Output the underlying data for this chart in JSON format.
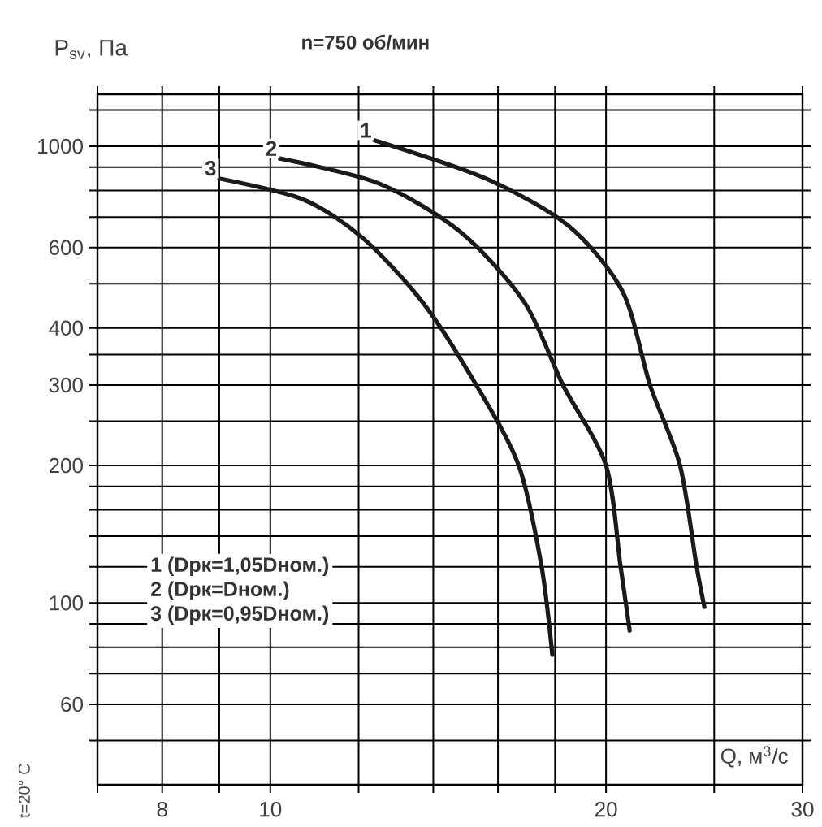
{
  "chart_data": {
    "type": "line",
    "title": "n=750 об/мин",
    "xlabel": "Q, м$^{3}$/с",
    "ylabel": "P$_{sv}$, Па",
    "log": "xy",
    "grid": true,
    "legend": false,
    "marker": "none",
    "line_style": "solid",
    "xlim": [
      7,
      30
    ],
    "ylim": [
      40,
      1300
    ],
    "xticks": [
      {
        "value": 7,
        "label": null
      },
      8,
      {
        "value": 9,
        "label": null
      },
      10,
      {
        "value": 12,
        "label": null
      },
      {
        "value": 14,
        "label": null
      },
      {
        "value": 16,
        "label": null
      },
      {
        "value": 18,
        "label": null
      },
      20,
      {
        "value": 25,
        "label": null
      },
      30
    ],
    "yticks": [
      {
        "value": 50,
        "label": null
      },
      60,
      {
        "value": 70,
        "label": null
      },
      {
        "value": 80,
        "label": null
      },
      {
        "value": 90,
        "label": null
      },
      100,
      {
        "value": 120,
        "label": null
      },
      {
        "value": 140,
        "label": null
      },
      {
        "value": 160,
        "label": null
      },
      {
        "value": 180,
        "label": null
      },
      200,
      {
        "value": 250,
        "label": null
      },
      300,
      {
        "value": 350,
        "label": null
      },
      400,
      {
        "value": 500,
        "label": null
      },
      600,
      {
        "value": 700,
        "label": null
      },
      {
        "value": 800,
        "label": null
      },
      {
        "value": 900,
        "label": null
      },
      1000,
      {
        "value": 1200,
        "label": null
      }
    ],
    "series": [
      {
        "name": "1",
        "color": "#1a1a1a",
        "x": [
          12.4,
          15.6,
          18.5,
          20.7,
          21.9,
          23.3,
          24.1,
          24.5
        ],
        "values": [
          1030,
          850,
          670,
          480,
          300,
          200,
          121,
          98
        ]
      },
      {
        "name": "2",
        "color": "#1a1a1a",
        "x": [
          10.2,
          12.5,
          14.8,
          16.9,
          18.3,
          20.0,
          20.6,
          21.0
        ],
        "values": [
          940,
          830,
          650,
          455,
          300,
          200,
          121,
          87
        ]
      },
      {
        "name": "3",
        "color": "#1a1a1a",
        "x": [
          9.0,
          10.7,
          12.1,
          13.7,
          15.3,
          16.7,
          17.5,
          17.9
        ],
        "values": [
          850,
          765,
          630,
          455,
          300,
          200,
          121,
          77
        ]
      }
    ],
    "annotations": [
      "1 (Dрк=1,05Dном.)",
      "2 (Dрк=Dном.)",
      "3 (Dрк=0,95Dном.)",
      "t=20° C"
    ]
  }
}
